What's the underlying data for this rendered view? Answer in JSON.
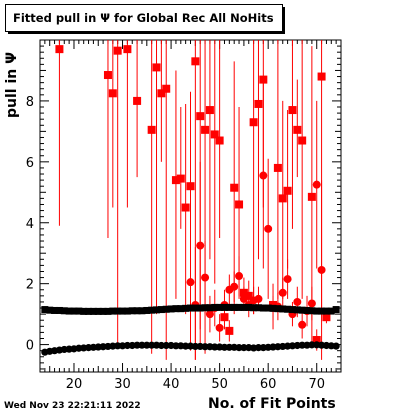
{
  "title": "Fitted pull in Ψ  for Global Rec All NoHits",
  "footer": "Wed Nov 23 22:21:11 2022",
  "chart_data": {
    "type": "scatter",
    "title": "Fitted pull in Ψ  for Global Rec All NoHits",
    "xlabel": "No. of Fit Points",
    "ylabel": "pull in  Ψ",
    "xlim": [
      13,
      75
    ],
    "ylim": [
      -0.9,
      10
    ],
    "xticks": [
      20,
      30,
      40,
      50,
      60,
      70
    ],
    "yticks": [
      0,
      2,
      4,
      6,
      8
    ],
    "colors": {
      "sigma": "#ff0000",
      "mean": "#000000"
    },
    "series": [
      {
        "marker": "square",
        "color": "#ff0000",
        "points": [
          {
            "x": 17,
            "y": 9.7,
            "lo": 3.9,
            "hi": 10
          },
          {
            "x": 27,
            "y": 8.85,
            "lo": 3.5,
            "hi": 10
          },
          {
            "x": 28,
            "y": 8.25,
            "lo": 4.5,
            "hi": 10
          },
          {
            "x": 29,
            "y": 9.65,
            "lo": 0.0,
            "hi": 10
          },
          {
            "x": 31,
            "y": 9.7,
            "lo": 4.5,
            "hi": 10
          },
          {
            "x": 33,
            "y": 8.0,
            "lo": 5.5,
            "hi": 10
          },
          {
            "x": 36,
            "y": 7.05,
            "lo": -0.3,
            "hi": 10
          },
          {
            "x": 37,
            "y": 9.1,
            "lo": 1.0,
            "hi": 10
          },
          {
            "x": 38,
            "y": 8.25,
            "lo": 6.0,
            "hi": 10
          },
          {
            "x": 39,
            "y": 8.4,
            "lo": -0.5,
            "hi": 10
          },
          {
            "x": 41,
            "y": 5.4,
            "lo": 1.5,
            "hi": 9.0
          },
          {
            "x": 42,
            "y": 5.45,
            "lo": 3.8,
            "hi": 7.8
          },
          {
            "x": 43,
            "y": 4.5,
            "lo": 1.0,
            "hi": 7.9
          },
          {
            "x": 44,
            "y": 5.2,
            "lo": 2.0,
            "hi": 8.3
          },
          {
            "x": 45,
            "y": 9.3,
            "lo": -0.5,
            "hi": 10
          },
          {
            "x": 46,
            "y": 7.5,
            "lo": 0.0,
            "hi": 10
          },
          {
            "x": 47,
            "y": 7.05,
            "lo": -0.3,
            "hi": 10
          },
          {
            "x": 48,
            "y": 7.7,
            "lo": 2.8,
            "hi": 10
          },
          {
            "x": 49,
            "y": 6.9,
            "lo": 2.0,
            "hi": 10
          },
          {
            "x": 50,
            "y": 6.7,
            "lo": 3.5,
            "hi": 10
          },
          {
            "x": 51,
            "y": 0.9,
            "lo": 0.5,
            "hi": 1.3
          },
          {
            "x": 52,
            "y": 0.45,
            "lo": 0.1,
            "hi": 0.8
          },
          {
            "x": 53,
            "y": 5.15,
            "lo": 1.0,
            "hi": 9.3
          },
          {
            "x": 54,
            "y": 4.6,
            "lo": 1.5,
            "hi": 7.8
          },
          {
            "x": 55,
            "y": 1.7,
            "lo": 1.2,
            "hi": 2.2
          },
          {
            "x": 56,
            "y": 1.6,
            "lo": 1.1,
            "hi": 2.1
          },
          {
            "x": 57,
            "y": 7.3,
            "lo": 1.0,
            "hi": 10
          },
          {
            "x": 58,
            "y": 7.9,
            "lo": 2.8,
            "hi": 10
          },
          {
            "x": 59,
            "y": 8.7,
            "lo": 4.5,
            "hi": 10
          },
          {
            "x": 61,
            "y": 1.3,
            "lo": 0.5,
            "hi": 2.0
          },
          {
            "x": 62,
            "y": 5.8,
            "lo": 1.5,
            "hi": 10
          },
          {
            "x": 63,
            "y": 4.8,
            "lo": 1.5,
            "hi": 8.0
          },
          {
            "x": 64,
            "y": 5.05,
            "lo": 2.5,
            "hi": 7.7
          },
          {
            "x": 65,
            "y": 7.7,
            "lo": 3.8,
            "hi": 10
          },
          {
            "x": 66,
            "y": 7.05,
            "lo": 5.5,
            "hi": 8.7
          },
          {
            "x": 67,
            "y": 6.7,
            "lo": 1.5,
            "hi": 10
          },
          {
            "x": 69,
            "y": 4.85,
            "lo": 0.0,
            "hi": 9.8
          },
          {
            "x": 70,
            "y": 0.15,
            "lo": -0.2,
            "hi": 0.5
          },
          {
            "x": 71,
            "y": 8.8,
            "lo": 1.0,
            "hi": 10
          },
          {
            "x": 72,
            "y": 0.9,
            "lo": 0.7,
            "hi": 1.1
          }
        ]
      },
      {
        "marker": "circle",
        "color": "#ff0000",
        "points": [
          {
            "x": 44,
            "y": 2.05,
            "lo": -0.2,
            "hi": 4.5
          },
          {
            "x": 45,
            "y": 1.3,
            "lo": -0.5,
            "hi": 3.2
          },
          {
            "x": 46,
            "y": 3.25,
            "lo": 0.5,
            "hi": 6.0
          },
          {
            "x": 47,
            "y": 2.2,
            "lo": 1.0,
            "hi": 3.4
          },
          {
            "x": 48,
            "y": 1.0,
            "lo": 0.4,
            "hi": 1.6
          },
          {
            "x": 49,
            "y": 1.2,
            "lo": 0.6,
            "hi": 1.8
          },
          {
            "x": 50,
            "y": 0.55,
            "lo": 0.1,
            "hi": 1.0
          },
          {
            "x": 51,
            "y": 1.3,
            "lo": 0.8,
            "hi": 1.8
          },
          {
            "x": 52,
            "y": 1.8,
            "lo": 1.3,
            "hi": 2.3
          },
          {
            "x": 53,
            "y": 1.9,
            "lo": 1.4,
            "hi": 2.4
          },
          {
            "x": 54,
            "y": 2.25,
            "lo": 1.6,
            "hi": 2.9
          },
          {
            "x": 55,
            "y": 1.5,
            "lo": 1.1,
            "hi": 1.9
          },
          {
            "x": 56,
            "y": 1.3,
            "lo": 0.9,
            "hi": 1.7
          },
          {
            "x": 57,
            "y": 1.45,
            "lo": 1.0,
            "hi": 1.9
          },
          {
            "x": 58,
            "y": 1.5,
            "lo": 1.1,
            "hi": 1.9
          },
          {
            "x": 59,
            "y": 5.55,
            "lo": 2.5,
            "hi": 8.6
          },
          {
            "x": 60,
            "y": 3.8,
            "lo": 1.5,
            "hi": 6.1
          },
          {
            "x": 61,
            "y": 1.2,
            "lo": 0.8,
            "hi": 1.6
          },
          {
            "x": 62,
            "y": 1.25,
            "lo": 0.8,
            "hi": 1.7
          },
          {
            "x": 63,
            "y": 1.7,
            "lo": 1.2,
            "hi": 2.2
          },
          {
            "x": 64,
            "y": 2.15,
            "lo": 1.5,
            "hi": 2.8
          },
          {
            "x": 65,
            "y": 1.0,
            "lo": 0.6,
            "hi": 1.4
          },
          {
            "x": 66,
            "y": 1.4,
            "lo": 0.9,
            "hi": 1.9
          },
          {
            "x": 67,
            "y": 0.65,
            "lo": 0.2,
            "hi": 1.1
          },
          {
            "x": 68,
            "y": 1.1,
            "lo": 0.6,
            "hi": 1.6
          },
          {
            "x": 69,
            "y": 1.35,
            "lo": 0.8,
            "hi": 1.9
          },
          {
            "x": 70,
            "y": 5.25,
            "lo": 2.5,
            "hi": 8.0
          },
          {
            "x": 71,
            "y": 2.45,
            "lo": -0.5,
            "hi": 5.4
          }
        ]
      },
      {
        "marker": "square",
        "color": "#000000",
        "points": [
          {
            "x": 14,
            "y": 1.15
          },
          {
            "x": 15,
            "y": 1.13
          },
          {
            "x": 16,
            "y": 1.12
          },
          {
            "x": 17,
            "y": 1.12
          },
          {
            "x": 18,
            "y": 1.11
          },
          {
            "x": 19,
            "y": 1.1
          },
          {
            "x": 20,
            "y": 1.1
          },
          {
            "x": 21,
            "y": 1.1
          },
          {
            "x": 22,
            "y": 1.09
          },
          {
            "x": 23,
            "y": 1.09
          },
          {
            "x": 24,
            "y": 1.09
          },
          {
            "x": 25,
            "y": 1.09
          },
          {
            "x": 26,
            "y": 1.09
          },
          {
            "x": 27,
            "y": 1.09
          },
          {
            "x": 28,
            "y": 1.1
          },
          {
            "x": 29,
            "y": 1.1
          },
          {
            "x": 30,
            "y": 1.1
          },
          {
            "x": 31,
            "y": 1.1
          },
          {
            "x": 32,
            "y": 1.11
          },
          {
            "x": 33,
            "y": 1.11
          },
          {
            "x": 34,
            "y": 1.11
          },
          {
            "x": 35,
            "y": 1.12
          },
          {
            "x": 36,
            "y": 1.13
          },
          {
            "x": 37,
            "y": 1.14
          },
          {
            "x": 38,
            "y": 1.15
          },
          {
            "x": 39,
            "y": 1.16
          },
          {
            "x": 40,
            "y": 1.17
          },
          {
            "x": 41,
            "y": 1.18
          },
          {
            "x": 42,
            "y": 1.18
          },
          {
            "x": 43,
            "y": 1.19
          },
          {
            "x": 44,
            "y": 1.2
          },
          {
            "x": 45,
            "y": 1.2
          },
          {
            "x": 46,
            "y": 1.2
          },
          {
            "x": 47,
            "y": 1.21
          },
          {
            "x": 48,
            "y": 1.21
          },
          {
            "x": 49,
            "y": 1.22
          },
          {
            "x": 50,
            "y": 1.22
          },
          {
            "x": 51,
            "y": 1.22
          },
          {
            "x": 52,
            "y": 1.22
          },
          {
            "x": 53,
            "y": 1.22
          },
          {
            "x": 54,
            "y": 1.22
          },
          {
            "x": 55,
            "y": 1.22
          },
          {
            "x": 56,
            "y": 1.22
          },
          {
            "x": 57,
            "y": 1.21
          },
          {
            "x": 58,
            "y": 1.21
          },
          {
            "x": 59,
            "y": 1.2
          },
          {
            "x": 60,
            "y": 1.2
          },
          {
            "x": 61,
            "y": 1.19
          },
          {
            "x": 62,
            "y": 1.18
          },
          {
            "x": 63,
            "y": 1.17
          },
          {
            "x": 64,
            "y": 1.16
          },
          {
            "x": 65,
            "y": 1.15
          },
          {
            "x": 66,
            "y": 1.14
          },
          {
            "x": 67,
            "y": 1.13
          },
          {
            "x": 68,
            "y": 1.12
          },
          {
            "x": 69,
            "y": 1.11
          },
          {
            "x": 70,
            "y": 1.1
          },
          {
            "x": 71,
            "y": 1.1
          },
          {
            "x": 72,
            "y": 1.1
          },
          {
            "x": 73,
            "y": 1.1
          },
          {
            "x": 74,
            "y": 1.15
          }
        ]
      },
      {
        "marker": "circle",
        "color": "#000000",
        "points": [
          {
            "x": 14,
            "y": -0.25
          },
          {
            "x": 15,
            "y": -0.22
          },
          {
            "x": 16,
            "y": -0.2
          },
          {
            "x": 17,
            "y": -0.18
          },
          {
            "x": 18,
            "y": -0.16
          },
          {
            "x": 19,
            "y": -0.15
          },
          {
            "x": 20,
            "y": -0.14
          },
          {
            "x": 21,
            "y": -0.12
          },
          {
            "x": 22,
            "y": -0.11
          },
          {
            "x": 23,
            "y": -0.1
          },
          {
            "x": 24,
            "y": -0.09
          },
          {
            "x": 25,
            "y": -0.08
          },
          {
            "x": 26,
            "y": -0.07
          },
          {
            "x": 27,
            "y": -0.06
          },
          {
            "x": 28,
            "y": -0.05
          },
          {
            "x": 29,
            "y": -0.04
          },
          {
            "x": 30,
            "y": -0.04
          },
          {
            "x": 31,
            "y": -0.03
          },
          {
            "x": 32,
            "y": -0.03
          },
          {
            "x": 33,
            "y": -0.02
          },
          {
            "x": 34,
            "y": -0.02
          },
          {
            "x": 35,
            "y": -0.02
          },
          {
            "x": 36,
            "y": -0.02
          },
          {
            "x": 37,
            "y": -0.02
          },
          {
            "x": 38,
            "y": -0.03
          },
          {
            "x": 39,
            "y": -0.03
          },
          {
            "x": 40,
            "y": -0.03
          },
          {
            "x": 41,
            "y": -0.04
          },
          {
            "x": 42,
            "y": -0.04
          },
          {
            "x": 43,
            "y": -0.05
          },
          {
            "x": 44,
            "y": -0.05
          },
          {
            "x": 45,
            "y": -0.06
          },
          {
            "x": 46,
            "y": -0.06
          },
          {
            "x": 47,
            "y": -0.07
          },
          {
            "x": 48,
            "y": -0.07
          },
          {
            "x": 49,
            "y": -0.08
          },
          {
            "x": 50,
            "y": -0.08
          },
          {
            "x": 51,
            "y": -0.09
          },
          {
            "x": 52,
            "y": -0.09
          },
          {
            "x": 53,
            "y": -0.09
          },
          {
            "x": 54,
            "y": -0.1
          },
          {
            "x": 55,
            "y": -0.1
          },
          {
            "x": 56,
            "y": -0.1
          },
          {
            "x": 57,
            "y": -0.11
          },
          {
            "x": 58,
            "y": -0.1
          },
          {
            "x": 59,
            "y": -0.1
          },
          {
            "x": 60,
            "y": -0.09
          },
          {
            "x": 61,
            "y": -0.08
          },
          {
            "x": 62,
            "y": -0.07
          },
          {
            "x": 63,
            "y": -0.06
          },
          {
            "x": 64,
            "y": -0.05
          },
          {
            "x": 65,
            "y": -0.04
          },
          {
            "x": 66,
            "y": -0.03
          },
          {
            "x": 67,
            "y": -0.02
          },
          {
            "x": 68,
            "y": -0.02
          },
          {
            "x": 69,
            "y": -0.01
          },
          {
            "x": 70,
            "y": -0.01
          },
          {
            "x": 71,
            "y": -0.02
          },
          {
            "x": 72,
            "y": -0.03
          },
          {
            "x": 73,
            "y": -0.04
          },
          {
            "x": 74,
            "y": -0.05
          }
        ]
      }
    ]
  }
}
